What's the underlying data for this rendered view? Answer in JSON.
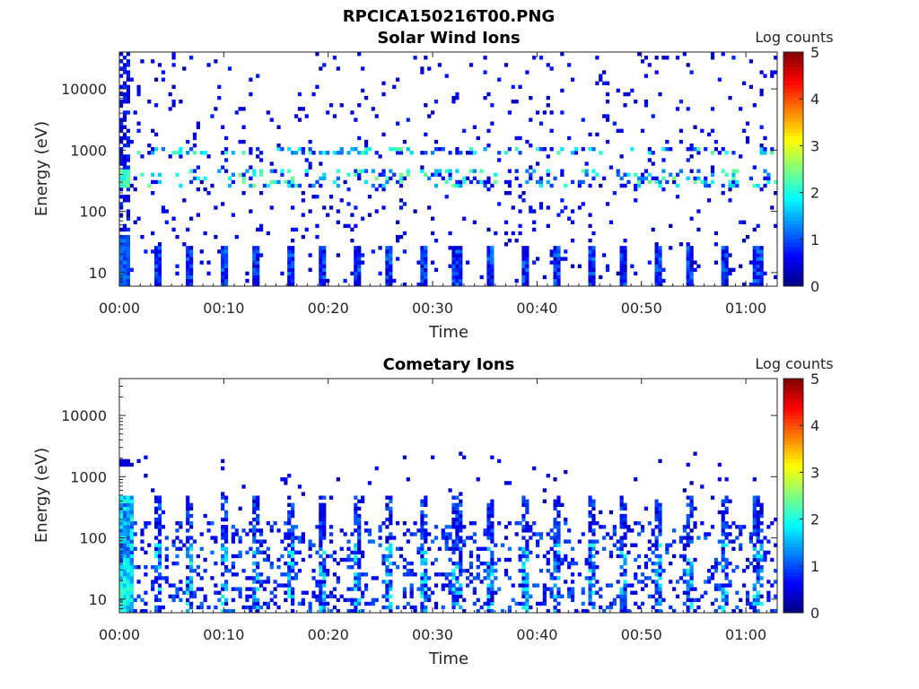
{
  "figure": {
    "title": "RPCICA150216T00.PNG"
  },
  "chart_data": [
    {
      "type": "heatmap",
      "title": "Solar Wind Ions",
      "xlabel": "Time",
      "ylabel": "Energy (eV)",
      "y_scale": "log",
      "xlim_minutes": [
        0,
        63
      ],
      "ylim": [
        6,
        40000
      ],
      "x_tick_labels": [
        "00:00",
        "00:10",
        "00:20",
        "00:30",
        "00:40",
        "00:50",
        "01:00"
      ],
      "y_tick_labels": [
        "10",
        "100",
        "1000",
        "10000"
      ],
      "colorbar": {
        "label": "Log counts",
        "range": [
          0,
          5
        ],
        "tick_labels": [
          "0",
          "1",
          "2",
          "3",
          "4",
          "5"
        ],
        "colormap": "jet"
      },
      "features": [
        {
          "name": "low-energy bands",
          "energy_range_eV": [
            6,
            30
          ],
          "log_counts_range": [
            0.3,
            1.8
          ],
          "time_step_min": 3.2
        },
        {
          "name": "solar wind peak",
          "energy_range_eV": [
            250,
            500
          ],
          "log_counts_range": [
            1.0,
            2.6
          ]
        },
        {
          "name": "alpha/high peak",
          "energy_range_eV": [
            800,
            1100
          ],
          "log_counts_range": [
            1.0,
            2.5
          ]
        }
      ]
    },
    {
      "type": "heatmap",
      "title": "Cometary Ions",
      "xlabel": "Time",
      "ylabel": "Energy (eV)",
      "y_scale": "log",
      "xlim_minutes": [
        0,
        63
      ],
      "ylim": [
        6,
        40000
      ],
      "x_tick_labels": [
        "00:00",
        "00:10",
        "00:20",
        "00:30",
        "00:40",
        "00:50",
        "01:00"
      ],
      "y_tick_labels": [
        "10",
        "100",
        "1000",
        "10000"
      ],
      "colorbar": {
        "label": "Log counts",
        "range": [
          0,
          5
        ],
        "tick_labels": [
          "0",
          "1",
          "2",
          "3",
          "4",
          "5"
        ],
        "colormap": "jet"
      },
      "features": [
        {
          "name": "cometary ion spikes",
          "energy_range_eV": [
            6,
            500
          ],
          "log_counts_range": [
            0.5,
            2.3
          ],
          "time_step_min": 3.2
        },
        {
          "name": "sparse high energy",
          "energy_range_eV": [
            500,
            2500
          ],
          "log_counts_range": [
            0.2,
            0.8
          ]
        }
      ]
    }
  ]
}
